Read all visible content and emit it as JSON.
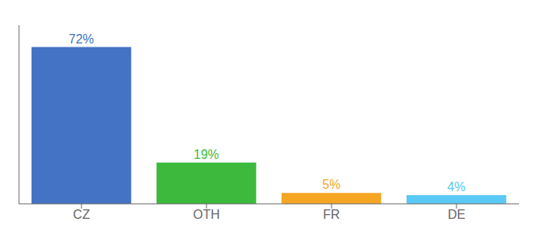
{
  "chart_data": {
    "type": "bar",
    "categories": [
      "CZ",
      "OTH",
      "FR",
      "DE"
    ],
    "values": [
      72,
      19,
      5,
      4
    ],
    "value_labels": [
      "72%",
      "19%",
      "5%",
      "4%"
    ],
    "colors": [
      "#4472c4",
      "#3dba3d",
      "#f5a623",
      "#5bc8f5"
    ],
    "ylim": [
      0,
      82
    ],
    "grid": false,
    "data_labels": true,
    "tick_labels": "x"
  }
}
